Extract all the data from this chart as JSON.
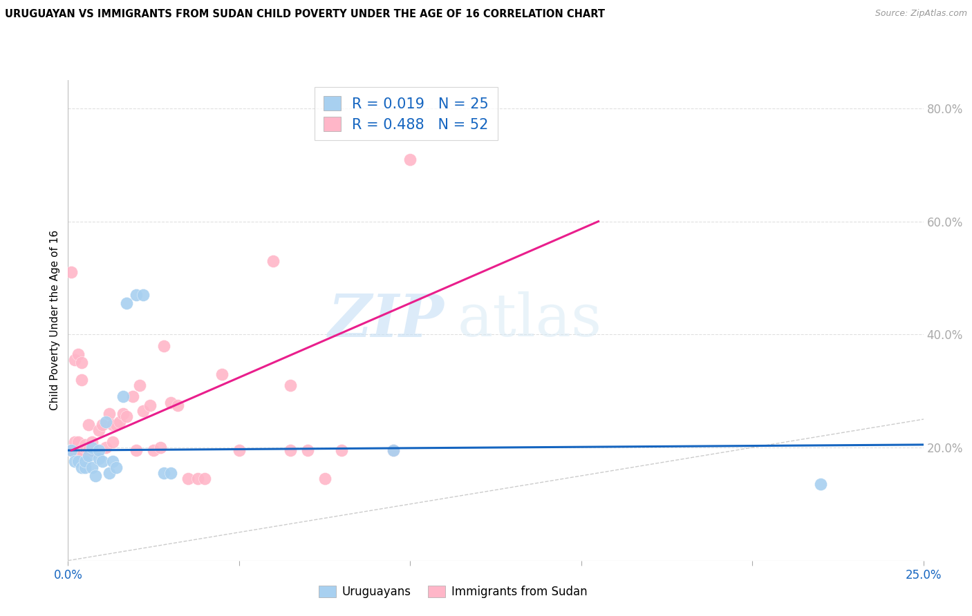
{
  "title": "URUGUAYAN VS IMMIGRANTS FROM SUDAN CHILD POVERTY UNDER THE AGE OF 16 CORRELATION CHART",
  "source": "Source: ZipAtlas.com",
  "ylabel": "Child Poverty Under the Age of 16",
  "xlim": [
    0.0,
    0.25
  ],
  "ylim": [
    0.0,
    0.85
  ],
  "xtick_labels": [
    "0.0%",
    "",
    "",
    "",
    "",
    "25.0%"
  ],
  "xtick_vals": [
    0.0,
    0.05,
    0.1,
    0.15,
    0.2,
    0.25
  ],
  "ytick_right_labels": [
    "20.0%",
    "40.0%",
    "60.0%",
    "80.0%"
  ],
  "ytick_right_vals": [
    0.2,
    0.4,
    0.6,
    0.8
  ],
  "blue_color": "#a8d0f0",
  "pink_color": "#ffb6c8",
  "blue_line_color": "#1565c0",
  "pink_line_color": "#e91e8c",
  "diagonal_color": "#cccccc",
  "watermark_zip": "ZIP",
  "watermark_atlas": "atlas",
  "legend_r1": "R = 0.019",
  "legend_n1": "N = 25",
  "legend_r2": "R = 0.488",
  "legend_n2": "N = 52",
  "blue_r_color": "#1565c0",
  "blue_n_color": "#1565c0",
  "uruguayan_x": [
    0.001,
    0.002,
    0.003,
    0.004,
    0.005,
    0.005,
    0.006,
    0.007,
    0.007,
    0.008,
    0.009,
    0.009,
    0.01,
    0.011,
    0.012,
    0.013,
    0.014,
    0.016,
    0.017,
    0.02,
    0.022,
    0.028,
    0.03,
    0.095,
    0.22
  ],
  "uruguayan_y": [
    0.195,
    0.175,
    0.175,
    0.165,
    0.165,
    0.175,
    0.185,
    0.165,
    0.2,
    0.15,
    0.18,
    0.195,
    0.175,
    0.245,
    0.155,
    0.175,
    0.165,
    0.29,
    0.455,
    0.47,
    0.47,
    0.155,
    0.155,
    0.195,
    0.135
  ],
  "sudan_x": [
    0.001,
    0.001,
    0.001,
    0.002,
    0.002,
    0.002,
    0.003,
    0.003,
    0.003,
    0.004,
    0.004,
    0.004,
    0.005,
    0.005,
    0.006,
    0.006,
    0.007,
    0.007,
    0.008,
    0.009,
    0.01,
    0.011,
    0.012,
    0.013,
    0.013,
    0.014,
    0.015,
    0.016,
    0.017,
    0.019,
    0.02,
    0.021,
    0.022,
    0.024,
    0.025,
    0.027,
    0.028,
    0.03,
    0.032,
    0.035,
    0.038,
    0.04,
    0.045,
    0.05,
    0.06,
    0.065,
    0.07,
    0.075,
    0.08,
    0.095,
    0.1,
    0.065
  ],
  "sudan_y": [
    0.195,
    0.195,
    0.51,
    0.195,
    0.21,
    0.355,
    0.195,
    0.21,
    0.365,
    0.32,
    0.35,
    0.195,
    0.2,
    0.205,
    0.195,
    0.24,
    0.195,
    0.21,
    0.195,
    0.23,
    0.24,
    0.2,
    0.26,
    0.21,
    0.24,
    0.24,
    0.245,
    0.26,
    0.255,
    0.29,
    0.195,
    0.31,
    0.265,
    0.275,
    0.195,
    0.2,
    0.38,
    0.28,
    0.275,
    0.145,
    0.145,
    0.145,
    0.33,
    0.195,
    0.53,
    0.31,
    0.195,
    0.145,
    0.195,
    0.195,
    0.71,
    0.195
  ],
  "blue_trend_x": [
    0.0,
    0.25
  ],
  "blue_trend_y": [
    0.195,
    0.205
  ],
  "pink_trend_x": [
    0.001,
    0.155
  ],
  "pink_trend_y": [
    0.195,
    0.6
  ]
}
